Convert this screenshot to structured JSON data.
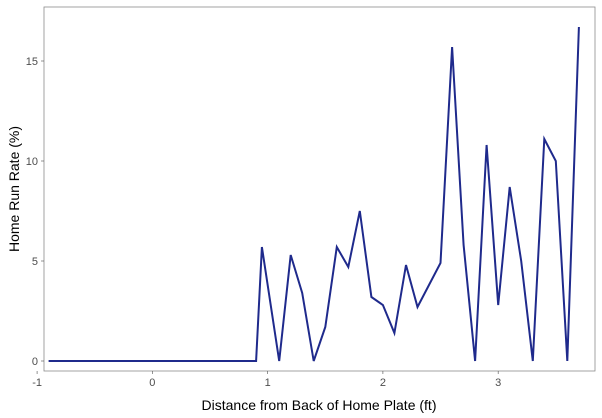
{
  "chart_data": {
    "type": "line",
    "title": "",
    "xlabel": "Distance from Back of Home Plate (ft)",
    "ylabel": "Home Run Rate (%)",
    "xlim": [
      -0.94,
      3.84
    ],
    "ylim": [
      -0.5,
      17.7
    ],
    "x_ticks": [
      -1,
      0,
      1,
      2,
      3
    ],
    "y_ticks": [
      0,
      5,
      10,
      15
    ],
    "grid": false,
    "legend": "none",
    "line_color": "#1f2a8c",
    "series": [
      {
        "x": [
          -0.9,
          0.9,
          0.95,
          1.1,
          1.2,
          1.3,
          1.4,
          1.5,
          1.6,
          1.7,
          1.8,
          1.9,
          2.0,
          2.1,
          2.2,
          2.3,
          2.5,
          2.6,
          2.7,
          2.8,
          2.9,
          3.0,
          3.1,
          3.2,
          3.3,
          3.4,
          3.5,
          3.6,
          3.7
        ],
        "y": [
          0,
          0,
          5.7,
          0,
          5.3,
          3.4,
          0,
          1.7,
          5.7,
          4.7,
          7.5,
          3.2,
          2.8,
          1.4,
          4.8,
          2.7,
          4.9,
          15.7,
          5.8,
          0,
          10.8,
          2.8,
          8.7,
          5.0,
          0,
          11.1,
          10.0,
          0,
          16.7
        ]
      }
    ]
  }
}
